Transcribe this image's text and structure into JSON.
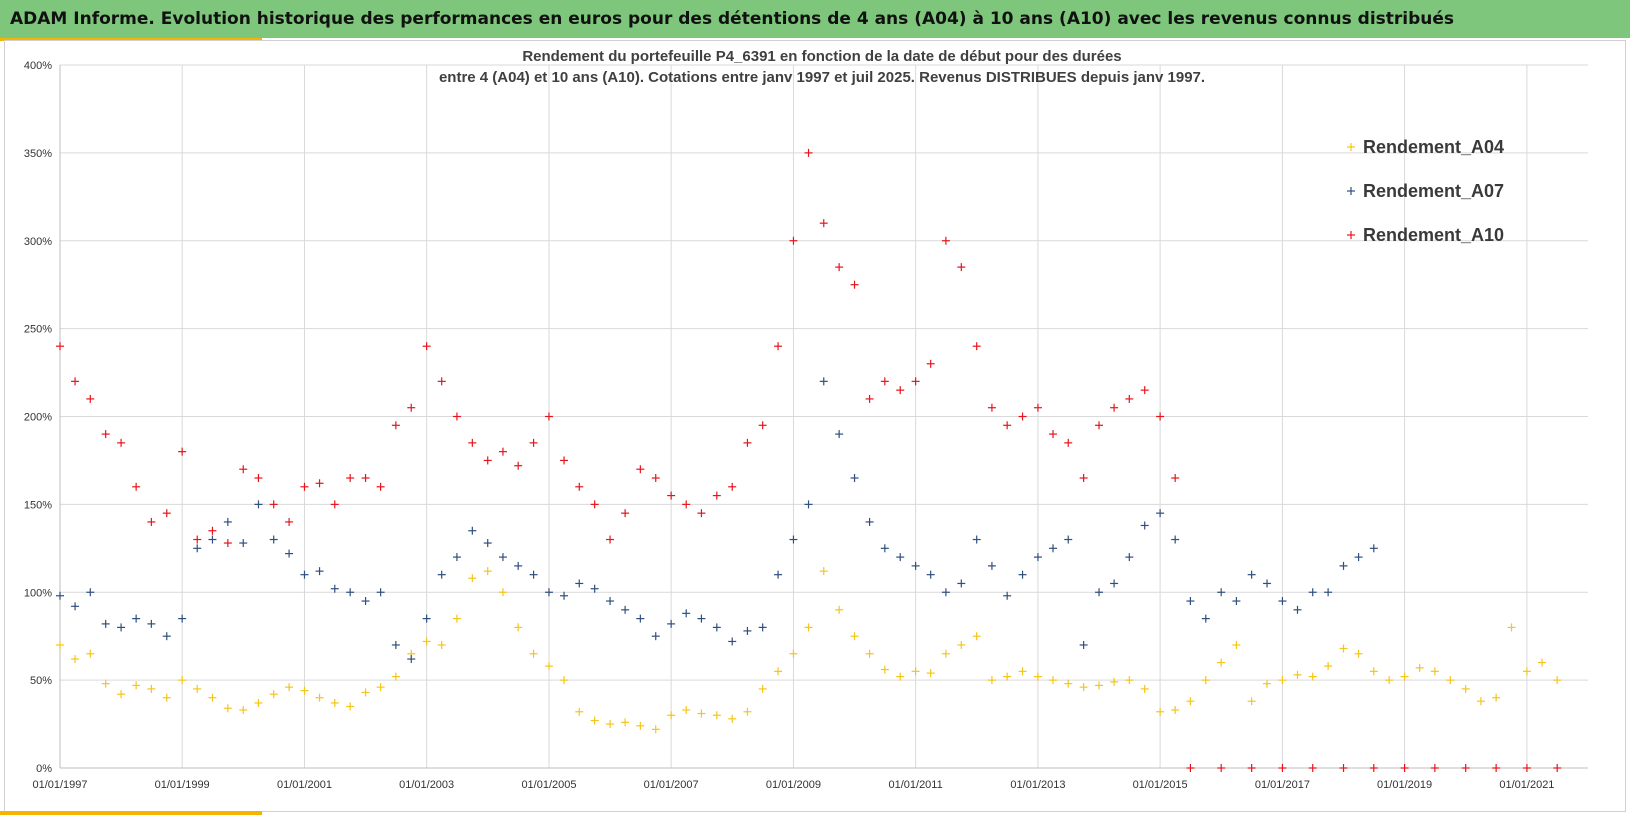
{
  "banner_text": "ADAM Informe. Evolution historique des performances en euros pour des détentions de 4 ans (A04) à 10 ans (A10) avec les revenus connus distribués",
  "colors": {
    "banner": "#7dc67b",
    "accent": "#f4b400",
    "A04": "#f5c518",
    "A07": "#2f4f7f",
    "A10": "#e8141c"
  },
  "chart_data": {
    "type": "scatter",
    "title": "Rendement du portefeuille P4_6391 en fonction de la date de début pour des durées",
    "subtitle": "entre 4 (A04) et 10 ans (A10). Cotations entre janv 1997 et juil 2025. Revenus DISTRIBUES depuis janv 1997.",
    "xlabel": "",
    "ylabel": "",
    "x_type": "date",
    "xlim": [
      "1997-01-01",
      "2022-01-01"
    ],
    "ylim": [
      0,
      400
    ],
    "y_unit": "%",
    "y_ticks": [
      "0%",
      "50%",
      "100%",
      "150%",
      "200%",
      "250%",
      "300%",
      "350%",
      "400%"
    ],
    "x_ticks": [
      "01/01/1997",
      "01/01/1999",
      "01/01/2001",
      "01/01/2003",
      "01/01/2005",
      "01/01/2007",
      "01/01/2009",
      "01/01/2011",
      "01/01/2013",
      "01/01/2015",
      "01/01/2017",
      "01/01/2019",
      "01/01/2021"
    ],
    "grid": true,
    "legend_position": "top-right",
    "marker": "+",
    "series": [
      {
        "name": "Rendement_A04",
        "x": [
          "1997-01",
          "1997-04",
          "1997-07",
          "1997-10",
          "1998-01",
          "1998-04",
          "1998-07",
          "1998-10",
          "1999-01",
          "1999-04",
          "1999-07",
          "1999-10",
          "2000-01",
          "2000-04",
          "2000-07",
          "2000-10",
          "2001-01",
          "2001-04",
          "2001-07",
          "2001-10",
          "2002-01",
          "2002-04",
          "2002-07",
          "2002-10",
          "2003-01",
          "2003-04",
          "2003-07",
          "2003-10",
          "2004-01",
          "2004-04",
          "2004-07",
          "2004-10",
          "2005-01",
          "2005-04",
          "2005-07",
          "2005-10",
          "2006-01",
          "2006-04",
          "2006-07",
          "2006-10",
          "2007-01",
          "2007-04",
          "2007-07",
          "2007-10",
          "2008-01",
          "2008-04",
          "2008-07",
          "2008-10",
          "2009-01",
          "2009-04",
          "2009-07",
          "2009-10",
          "2010-01",
          "2010-04",
          "2010-07",
          "2010-10",
          "2011-01",
          "2011-04",
          "2011-07",
          "2011-10",
          "2012-01",
          "2012-04",
          "2012-07",
          "2012-10",
          "2013-01",
          "2013-04",
          "2013-07",
          "2013-10",
          "2014-01",
          "2014-04",
          "2014-07",
          "2014-10",
          "2015-01",
          "2015-04",
          "2015-07",
          "2015-10",
          "2016-01",
          "2016-04",
          "2016-07",
          "2016-10",
          "2017-01",
          "2017-04",
          "2017-07",
          "2017-10",
          "2018-01",
          "2018-04",
          "2018-07",
          "2018-10",
          "2019-01",
          "2019-04",
          "2019-07",
          "2019-10",
          "2020-01",
          "2020-04",
          "2020-07",
          "2020-10",
          "2021-01",
          "2021-04",
          "2021-07"
        ],
        "y": [
          70,
          62,
          65,
          48,
          42,
          47,
          45,
          40,
          50,
          45,
          40,
          34,
          33,
          37,
          42,
          46,
          44,
          40,
          37,
          35,
          43,
          46,
          52,
          65,
          72,
          70,
          85,
          108,
          112,
          100,
          80,
          65,
          58,
          50,
          32,
          27,
          25,
          26,
          24,
          22,
          30,
          33,
          31,
          30,
          28,
          32,
          45,
          55,
          65,
          80,
          112,
          90,
          75,
          65,
          56,
          52,
          55,
          54,
          65,
          70,
          75,
          50,
          52,
          55,
          52,
          50,
          48,
          46,
          47,
          49,
          50,
          45,
          32,
          33,
          38,
          50,
          60,
          70,
          38,
          48,
          50,
          53,
          52,
          58,
          68,
          65,
          55,
          50,
          52,
          57,
          55,
          50,
          45,
          38,
          40,
          80,
          55,
          60,
          50
        ]
      },
      {
        "name": "Rendement_A07",
        "x": [
          "1997-01",
          "1997-04",
          "1997-07",
          "1997-10",
          "1998-01",
          "1998-04",
          "1998-07",
          "1998-10",
          "1999-01",
          "1999-04",
          "1999-07",
          "1999-10",
          "2000-01",
          "2000-04",
          "2000-07",
          "2000-10",
          "2001-01",
          "2001-04",
          "2001-07",
          "2001-10",
          "2002-01",
          "2002-04",
          "2002-07",
          "2002-10",
          "2003-01",
          "2003-04",
          "2003-07",
          "2003-10",
          "2004-01",
          "2004-04",
          "2004-07",
          "2004-10",
          "2005-01",
          "2005-04",
          "2005-07",
          "2005-10",
          "2006-01",
          "2006-04",
          "2006-07",
          "2006-10",
          "2007-01",
          "2007-04",
          "2007-07",
          "2007-10",
          "2008-01",
          "2008-04",
          "2008-07",
          "2008-10",
          "2009-01",
          "2009-04",
          "2009-07",
          "2009-10",
          "2010-01",
          "2010-04",
          "2010-07",
          "2010-10",
          "2011-01",
          "2011-04",
          "2011-07",
          "2011-10",
          "2012-01",
          "2012-04",
          "2012-07",
          "2012-10",
          "2013-01",
          "2013-04",
          "2013-07",
          "2013-10",
          "2014-01",
          "2014-04",
          "2014-07",
          "2014-10",
          "2015-01",
          "2015-04",
          "2015-07",
          "2015-10",
          "2016-01",
          "2016-04",
          "2016-07",
          "2016-10",
          "2017-01",
          "2017-04",
          "2017-07",
          "2017-10",
          "2018-01",
          "2018-04",
          "2018-07"
        ],
        "y": [
          98,
          92,
          100,
          82,
          80,
          85,
          82,
          75,
          85,
          125,
          130,
          140,
          128,
          150,
          130,
          122,
          110,
          112,
          102,
          100,
          95,
          100,
          70,
          62,
          85,
          110,
          120,
          135,
          128,
          120,
          115,
          110,
          100,
          98,
          105,
          102,
          95,
          90,
          85,
          75,
          82,
          88,
          85,
          80,
          72,
          78,
          80,
          110,
          130,
          150,
          220,
          190,
          165,
          140,
          125,
          120,
          115,
          110,
          100,
          105,
          130,
          115,
          98,
          110,
          120,
          125,
          130,
          70,
          100,
          105,
          120,
          138,
          145,
          130,
          95,
          85,
          100,
          95,
          110,
          105,
          95,
          90,
          100,
          100,
          115,
          120,
          125
        ]
      },
      {
        "name": "Rendement_A10",
        "x": [
          "1997-01",
          "1997-04",
          "1997-07",
          "1997-10",
          "1998-01",
          "1998-04",
          "1998-07",
          "1998-10",
          "1999-01",
          "1999-04",
          "1999-07",
          "1999-10",
          "2000-01",
          "2000-04",
          "2000-07",
          "2000-10",
          "2001-01",
          "2001-04",
          "2001-07",
          "2001-10",
          "2002-01",
          "2002-04",
          "2002-07",
          "2002-10",
          "2003-01",
          "2003-04",
          "2003-07",
          "2003-10",
          "2004-01",
          "2004-04",
          "2004-07",
          "2004-10",
          "2005-01",
          "2005-04",
          "2005-07",
          "2005-10",
          "2006-01",
          "2006-04",
          "2006-07",
          "2006-10",
          "2007-01",
          "2007-04",
          "2007-07",
          "2007-10",
          "2008-01",
          "2008-04",
          "2008-07",
          "2008-10",
          "2009-01",
          "2009-04",
          "2009-07",
          "2009-10",
          "2010-01",
          "2010-04",
          "2010-07",
          "2010-10",
          "2011-01",
          "2011-04",
          "2011-07",
          "2011-10",
          "2012-01",
          "2012-04",
          "2012-07",
          "2012-10",
          "2013-01",
          "2013-04",
          "2013-07",
          "2013-10",
          "2014-01",
          "2014-04",
          "2014-07",
          "2014-10",
          "2015-01",
          "2015-04"
        ],
        "y": [
          240,
          220,
          210,
          190,
          185,
          160,
          140,
          145,
          180,
          130,
          135,
          128,
          170,
          165,
          150,
          140,
          160,
          162,
          150,
          165,
          165,
          160,
          195,
          205,
          240,
          220,
          200,
          185,
          175,
          180,
          172,
          185,
          200,
          175,
          160,
          150,
          130,
          145,
          170,
          165,
          155,
          150,
          145,
          155,
          160,
          185,
          195,
          240,
          300,
          350,
          310,
          285,
          275,
          210,
          220,
          215,
          220,
          230,
          300,
          285,
          240,
          205,
          195,
          200,
          205,
          190,
          185,
          165,
          195,
          205,
          210,
          215,
          200,
          165
        ]
      },
      {
        "name": "",
        "x": [
          "2015-07",
          "2016-01",
          "2016-07",
          "2017-01",
          "2017-07",
          "2018-01",
          "2018-07",
          "2019-01",
          "2019-07",
          "2020-01",
          "2020-07",
          "2021-01",
          "2021-07"
        ],
        "y": [
          0,
          0,
          0,
          0,
          0,
          0,
          0,
          0,
          0,
          0,
          0,
          0,
          0
        ]
      }
    ]
  }
}
